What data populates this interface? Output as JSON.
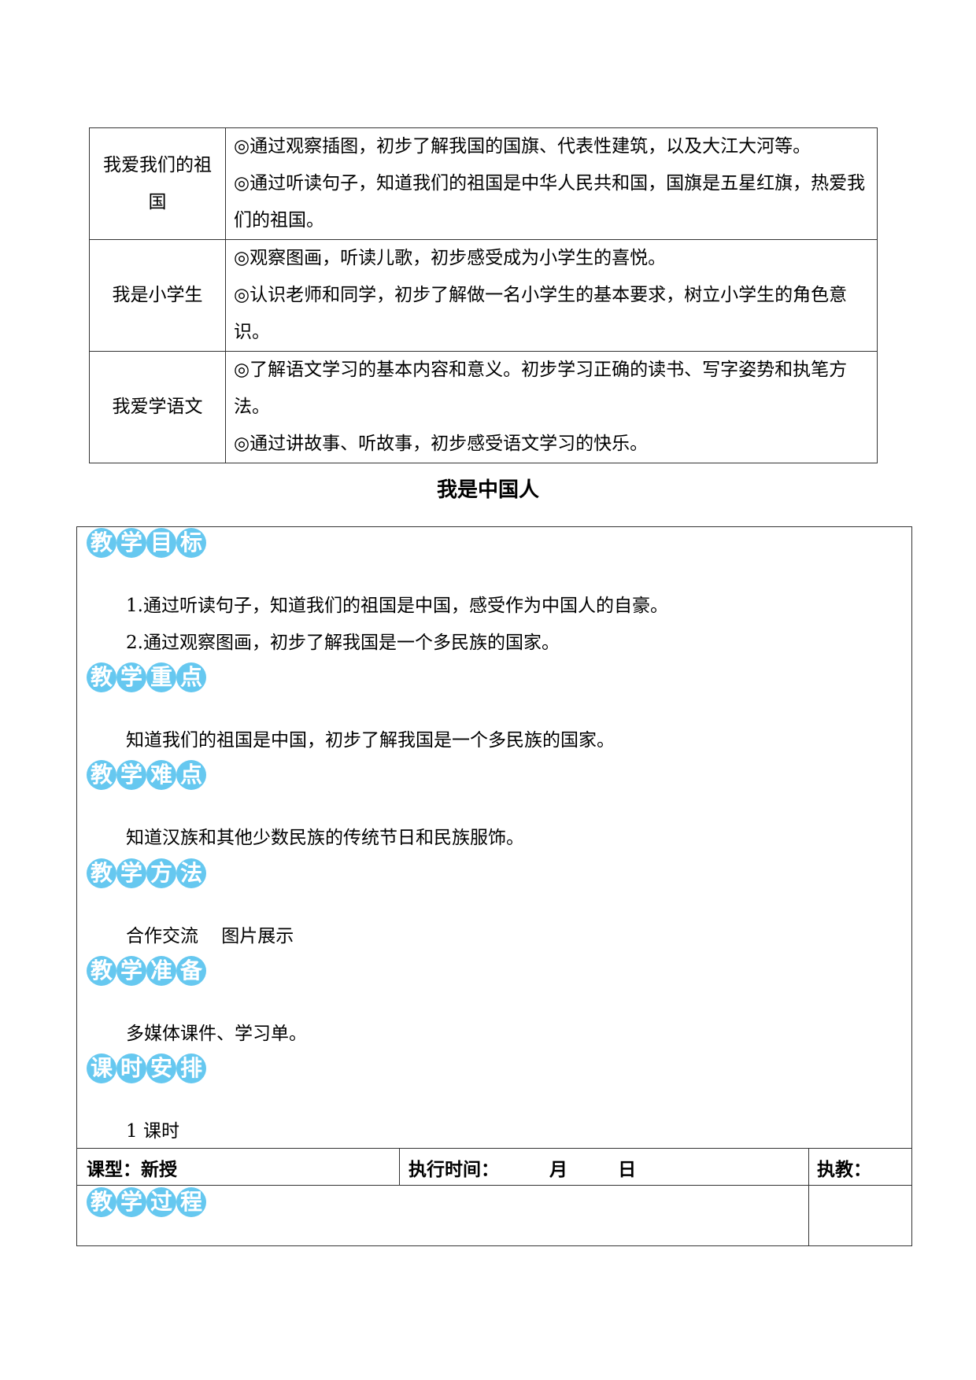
{
  "overview_table": [
    {
      "unit": "我爱我们的祖国",
      "goals": [
        "◎通过观察插图，初步了解我国的国旗、代表性建筑，以及大江大河等。",
        "◎通过听读句子，知道我们的祖国是中华人民共和国，国旗是五星红旗，热爱我们的祖国。"
      ]
    },
    {
      "unit": "我是小学生",
      "goals": [
        "◎观察图画，听读儿歌，初步感受成为小学生的喜悦。",
        "◎认识老师和同学，初步了解做一名小学生的基本要求，树立小学生的角色意识。"
      ]
    },
    {
      "unit": "我爱学语文",
      "goals": [
        "◎了解语文学习的基本内容和意义。初步学习正确的读书、写字姿势和执笔方法。",
        "◎通过讲故事、听故事，初步感受语文学习的快乐。"
      ]
    }
  ],
  "lesson_title": "我是中国人",
  "sections": [
    {
      "badge": [
        "教",
        "学",
        "目",
        "标"
      ],
      "lines": [
        "1.通过听读句子，知道我们的祖国是中国，感受作为中国人的自豪。",
        "2.通过观察图画，初步了解我国是一个多民族的国家。"
      ]
    },
    {
      "badge": [
        "教",
        "学",
        "重",
        "点"
      ],
      "lines": [
        "知道我们的祖国是中国，初步了解我国是一个多民族的国家。"
      ]
    },
    {
      "badge": [
        "教",
        "学",
        "难",
        "点"
      ],
      "lines": [
        "知道汉族和其他少数民族的传统节日和民族服饰。"
      ]
    },
    {
      "badge": [
        "教",
        "学",
        "方",
        "法"
      ],
      "lines": [
        "合作交流    图片展示"
      ]
    },
    {
      "badge": [
        "教",
        "学",
        "准",
        "备"
      ],
      "lines": [
        "多媒体课件、学习单。"
      ]
    },
    {
      "badge": [
        "课",
        "时",
        "安",
        "排"
      ],
      "lines": [
        "1 课时"
      ]
    }
  ],
  "footer": {
    "lesson_type": "课型：新授",
    "exec_time": "执行时间：        月        日",
    "teacher": "执教：",
    "process_badge": [
      "教",
      "学",
      "过",
      "程"
    ]
  },
  "colors": {
    "badge": "#66c8f0"
  }
}
